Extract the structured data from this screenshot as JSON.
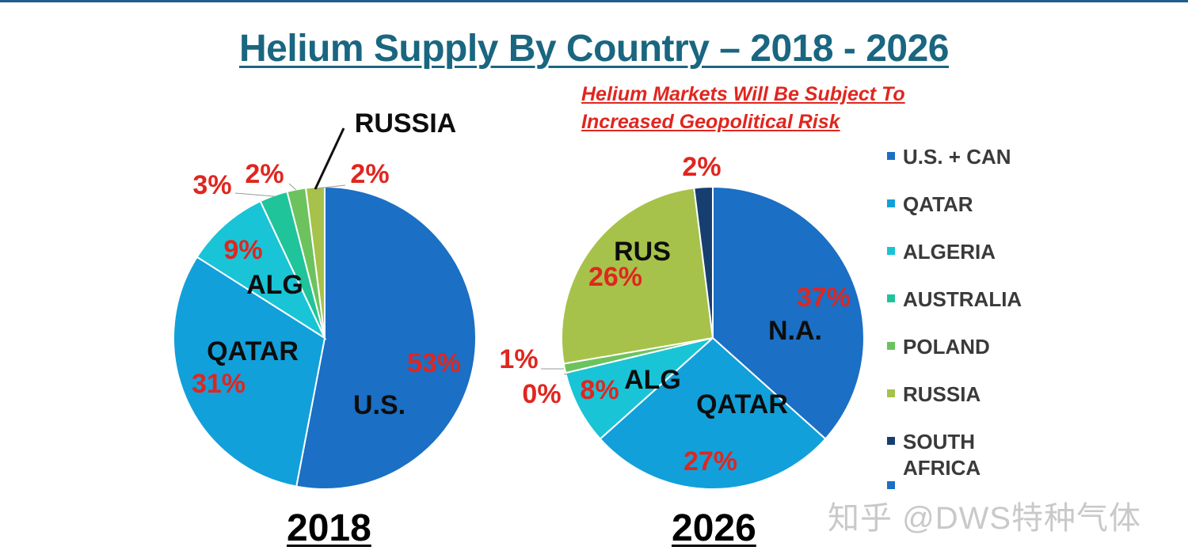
{
  "title": "Helium Supply By Country – 2018 - 2026",
  "subtitle": "Helium Markets Will Be Subject To Increased Geopolitical Risk",
  "watermark": "知乎 @DWS特种气体",
  "colors": {
    "title": "#1a6680",
    "subtitle": "#e0261f",
    "percent_label": "#e0261f",
    "us_can": "#1b6fc4",
    "qatar": "#12a0da",
    "algeria": "#19c4d6",
    "australia": "#1fc49a",
    "poland": "#6cc35d",
    "russia": "#a6c24a",
    "south_africa": "#163f70"
  },
  "legend": [
    {
      "label": "U.S. + CAN",
      "color": "#1b6fc4"
    },
    {
      "label": "QATAR",
      "color": "#12a0da"
    },
    {
      "label": "ALGERIA",
      "color": "#19c4d6"
    },
    {
      "label": "AUSTRALIA",
      "color": "#1fc49a"
    },
    {
      "label": "POLAND",
      "color": "#6cc35d"
    },
    {
      "label": "RUSSIA",
      "color": "#a6c24a"
    },
    {
      "label": "SOUTH AFRICA",
      "color": "#163f70"
    },
    {
      "label": "",
      "color": "#1b6fc4"
    }
  ],
  "chart_data": [
    {
      "type": "pie",
      "title": "2018",
      "labels": [
        "U.S. + CAN",
        "QATAR",
        "ALGERIA",
        "AUSTRALIA",
        "POLAND",
        "RUSSIA"
      ],
      "values": [
        53,
        31,
        9,
        3,
        2,
        2
      ],
      "percent_labels": [
        "53%",
        "31%",
        "9%",
        "3%",
        "2%",
        "2%"
      ],
      "slice_labels": [
        "U.S.",
        "QATAR",
        "ALG",
        "",
        "",
        "RUSSIA"
      ]
    },
    {
      "type": "pie",
      "title": "2026",
      "labels": [
        "U.S. + CAN",
        "QATAR",
        "ALGERIA",
        "AUSTRALIA",
        "POLAND",
        "RUSSIA",
        "SOUTH AFRICA"
      ],
      "values": [
        37,
        27,
        8,
        0,
        1,
        26,
        2
      ],
      "percent_labels": [
        "37%",
        "27%",
        "8%",
        "0%",
        "1%",
        "26%",
        "2%"
      ],
      "slice_labels": [
        "N.A.",
        "QATAR",
        "ALG",
        "",
        "",
        "RUS",
        ""
      ]
    }
  ]
}
